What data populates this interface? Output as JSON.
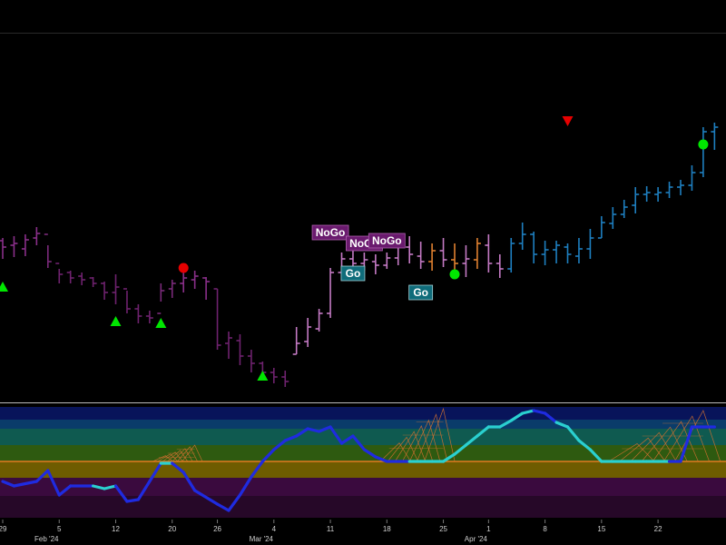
{
  "chart_data": {
    "type": "ohlc",
    "price_panel": {
      "x_dates": [
        "2024-01-29",
        "2024-01-30",
        "2024-01-31",
        "2024-02-01",
        "2024-02-02",
        "2024-02-05",
        "2024-02-06",
        "2024-02-07",
        "2024-02-08",
        "2024-02-09",
        "2024-02-12",
        "2024-02-13",
        "2024-02-14",
        "2024-02-15",
        "2024-02-16",
        "2024-02-20",
        "2024-02-21",
        "2024-02-22",
        "2024-02-23",
        "2024-02-26",
        "2024-02-27",
        "2024-02-28",
        "2024-02-29",
        "2024-03-01",
        "2024-03-04",
        "2024-03-05",
        "2024-03-06",
        "2024-03-07",
        "2024-03-08",
        "2024-03-11",
        "2024-03-12",
        "2024-03-13",
        "2024-03-14",
        "2024-03-15",
        "2024-03-18",
        "2024-03-19",
        "2024-03-20",
        "2024-03-21",
        "2024-03-22",
        "2024-03-25",
        "2024-03-26",
        "2024-03-27",
        "2024-03-28",
        "2024-04-01",
        "2024-04-02",
        "2024-04-03",
        "2024-04-04",
        "2024-04-05",
        "2024-04-08",
        "2024-04-09",
        "2024-04-10",
        "2024-04-11",
        "2024-04-12",
        "2024-04-15",
        "2024-04-16",
        "2024-04-17",
        "2024-04-18",
        "2024-04-19",
        "2024-04-22",
        "2024-04-23",
        "2024-04-24",
        "2024-04-25",
        "2024-04-26",
        "2024-04-29"
      ],
      "bars": [
        {
          "o": 265,
          "h": 262,
          "l": 285,
          "c": 272,
          "color": "#8a2f8a"
        },
        {
          "o": 270,
          "h": 260,
          "l": 283,
          "c": 268,
          "color": "#8a2f8a"
        },
        {
          "o": 274,
          "h": 258,
          "l": 282,
          "c": 264,
          "color": "#8a2f8a"
        },
        {
          "o": 262,
          "h": 250,
          "l": 270,
          "c": 257,
          "color": "#8a2f8a"
        },
        {
          "o": 258,
          "h": 270,
          "l": 295,
          "c": 288,
          "color": "#7a2a7a"
        },
        {
          "o": 290,
          "h": 296,
          "l": 312,
          "c": 302,
          "color": "#6e226e"
        },
        {
          "o": 300,
          "h": 298,
          "l": 312,
          "c": 306,
          "color": "#6e226e"
        },
        {
          "o": 304,
          "h": 300,
          "l": 314,
          "c": 308,
          "color": "#6e226e"
        },
        {
          "o": 306,
          "h": 305,
          "l": 316,
          "c": 312,
          "color": "#6e226e"
        },
        {
          "o": 312,
          "h": 310,
          "l": 330,
          "c": 322,
          "color": "#6e226e"
        },
        {
          "o": 322,
          "h": 302,
          "l": 335,
          "c": 316,
          "color": "#6e226e"
        },
        {
          "o": 318,
          "h": 320,
          "l": 345,
          "c": 340,
          "color": "#6e226e"
        },
        {
          "o": 340,
          "h": 335,
          "l": 356,
          "c": 348,
          "color": "#6e226e"
        },
        {
          "o": 348,
          "h": 342,
          "l": 356,
          "c": 350,
          "color": "#6e226e"
        },
        {
          "o": 345,
          "h": 312,
          "l": 332,
          "c": 320,
          "color": "#7a2a7a"
        },
        {
          "o": 318,
          "h": 308,
          "l": 328,
          "c": 312,
          "color": "#7a2a7a"
        },
        {
          "o": 312,
          "h": 300,
          "l": 322,
          "c": 306,
          "color": "#8a2f8a"
        },
        {
          "o": 308,
          "h": 298,
          "l": 318,
          "c": 304,
          "color": "#8a2f8a"
        },
        {
          "o": 306,
          "h": 305,
          "l": 330,
          "c": 310,
          "color": "#8a2f8a"
        },
        {
          "o": 318,
          "h": 318,
          "l": 385,
          "c": 380,
          "color": "#6e226e"
        },
        {
          "o": 378,
          "h": 365,
          "l": 395,
          "c": 372,
          "color": "#6e226e"
        },
        {
          "o": 375,
          "h": 368,
          "l": 402,
          "c": 392,
          "color": "#6e226e"
        },
        {
          "o": 392,
          "h": 385,
          "l": 410,
          "c": 400,
          "color": "#6e226e"
        },
        {
          "o": 400,
          "h": 398,
          "l": 418,
          "c": 410,
          "color": "#6e226e"
        },
        {
          "o": 410,
          "h": 405,
          "l": 422,
          "c": 415,
          "color": "#6e226e"
        },
        {
          "o": 415,
          "h": 408,
          "l": 426,
          "c": 420,
          "color": "#6e226e"
        },
        {
          "o": 390,
          "h": 360,
          "l": 390,
          "c": 378,
          "color": "#c47ac4"
        },
        {
          "o": 376,
          "h": 350,
          "l": 382,
          "c": 360,
          "color": "#c47ac4"
        },
        {
          "o": 362,
          "h": 340,
          "l": 365,
          "c": 345,
          "color": "#c47ac4"
        },
        {
          "o": 345,
          "h": 295,
          "l": 350,
          "c": 300,
          "color": "#c47ac4"
        },
        {
          "o": 300,
          "h": 278,
          "l": 308,
          "c": 285,
          "color": "#c47ac4"
        },
        {
          "o": 285,
          "h": 275,
          "l": 300,
          "c": 290,
          "color": "#c47ac4"
        },
        {
          "o": 290,
          "h": 278,
          "l": 298,
          "c": 286,
          "color": "#c47ac4"
        },
        {
          "o": 288,
          "h": 280,
          "l": 302,
          "c": 292,
          "color": "#c47ac4"
        },
        {
          "o": 292,
          "h": 278,
          "l": 296,
          "c": 284,
          "color": "#c47ac4"
        },
        {
          "o": 284,
          "h": 262,
          "l": 292,
          "c": 270,
          "color": "#c47ac4"
        },
        {
          "o": 272,
          "h": 260,
          "l": 290,
          "c": 280,
          "color": "#c47ac4"
        },
        {
          "o": 282,
          "h": 266,
          "l": 296,
          "c": 288,
          "color": "#c47ac4"
        },
        {
          "o": 288,
          "h": 268,
          "l": 298,
          "c": 276,
          "color": "#e08030"
        },
        {
          "o": 276,
          "h": 262,
          "l": 294,
          "c": 286,
          "color": "#c47ac4"
        },
        {
          "o": 286,
          "h": 268,
          "l": 300,
          "c": 290,
          "color": "#e08030"
        },
        {
          "o": 290,
          "h": 270,
          "l": 305,
          "c": 285,
          "color": "#c47ac4"
        },
        {
          "o": 286,
          "h": 262,
          "l": 296,
          "c": 268,
          "color": "#e08030"
        },
        {
          "o": 270,
          "h": 258,
          "l": 300,
          "c": 290,
          "color": "#c47ac4"
        },
        {
          "o": 290,
          "h": 280,
          "l": 306,
          "c": 296,
          "color": "#c47ac4"
        },
        {
          "o": 296,
          "h": 262,
          "l": 300,
          "c": 268,
          "color": "#1e7fc0"
        },
        {
          "o": 268,
          "h": 245,
          "l": 275,
          "c": 258,
          "color": "#1e7fc0"
        },
        {
          "o": 258,
          "h": 255,
          "l": 290,
          "c": 280,
          "color": "#1e7fc0"
        },
        {
          "o": 280,
          "h": 265,
          "l": 292,
          "c": 275,
          "color": "#1e7fc0"
        },
        {
          "o": 275,
          "h": 265,
          "l": 290,
          "c": 270,
          "color": "#1e7fc0"
        },
        {
          "o": 272,
          "h": 268,
          "l": 290,
          "c": 280,
          "color": "#1e7fc0"
        },
        {
          "o": 282,
          "h": 262,
          "l": 290,
          "c": 274,
          "color": "#1e7fc0"
        },
        {
          "o": 274,
          "h": 252,
          "l": 285,
          "c": 262,
          "color": "#1e7fc0"
        },
        {
          "o": 262,
          "h": 238,
          "l": 262,
          "c": 245,
          "color": "#1e7fc0"
        },
        {
          "o": 246,
          "h": 228,
          "l": 252,
          "c": 236,
          "color": "#1e7fc0"
        },
        {
          "o": 236,
          "h": 220,
          "l": 240,
          "c": 228,
          "color": "#1e7fc0"
        },
        {
          "o": 226,
          "h": 206,
          "l": 235,
          "c": 214,
          "color": "#1e7fc0"
        },
        {
          "o": 214,
          "h": 205,
          "l": 222,
          "c": 212,
          "color": "#1e7fc0"
        },
        {
          "o": 214,
          "h": 206,
          "l": 222,
          "c": 212,
          "color": "#1e7fc0"
        },
        {
          "o": 212,
          "h": 200,
          "l": 218,
          "c": 206,
          "color": "#1e7fc0"
        },
        {
          "o": 206,
          "h": 198,
          "l": 215,
          "c": 204,
          "color": "#1e7fc0"
        },
        {
          "o": 204,
          "h": 182,
          "l": 210,
          "c": 190,
          "color": "#1e7fc0"
        },
        {
          "o": 190,
          "h": 140,
          "l": 195,
          "c": 145,
          "color": "#1e7fc0"
        },
        {
          "o": 145,
          "h": 135,
          "l": 165,
          "c": 140,
          "color": "#1e7fc0"
        }
      ],
      "markers": [
        {
          "type": "green-triangle-up",
          "date": "2024-01-29",
          "value": 316
        },
        {
          "type": "green-triangle-up",
          "date": "2024-02-12",
          "value": 354
        },
        {
          "type": "green-triangle-up",
          "date": "2024-02-16",
          "value": 356
        },
        {
          "type": "red-circle",
          "date": "2024-02-21",
          "value": 295
        },
        {
          "type": "green-triangle-up",
          "date": "2024-03-01",
          "value": 414
        },
        {
          "type": "green-circle",
          "date": "2024-03-26",
          "value": 302
        },
        {
          "type": "red-triangle-down",
          "date": "2024-04-10",
          "value": 133
        },
        {
          "type": "green-circle",
          "date": "2024-04-26",
          "value": 159
        }
      ],
      "flags": [
        {
          "label": "NoGo",
          "kind": "nogo",
          "date": "2024-03-11",
          "value": 256
        },
        {
          "label": "NoGo",
          "kind": "nogo",
          "date": "2024-03-14",
          "value": 268
        },
        {
          "label": "NoGo",
          "kind": "nogo",
          "date": "2024-03-18",
          "value": 265
        },
        {
          "label": "Go",
          "kind": "go",
          "date": "2024-03-13",
          "value": 301
        },
        {
          "label": "Go",
          "kind": "go",
          "date": "2024-03-21",
          "value": 322
        }
      ]
    },
    "oscillator_panel": {
      "zero_value": 508,
      "line": [
        {
          "d": "2024-01-29",
          "v": 530,
          "c": "#1f2be0"
        },
        {
          "d": "2024-01-30",
          "v": 535,
          "c": "#1f2be0"
        },
        {
          "d": "2024-02-01",
          "v": 530,
          "c": "#1f2be0"
        },
        {
          "d": "2024-02-02",
          "v": 518,
          "c": "#1f2be0"
        },
        {
          "d": "2024-02-05",
          "v": 545,
          "c": "#1f2be0"
        },
        {
          "d": "2024-02-06",
          "v": 535,
          "c": "#1f2be0"
        },
        {
          "d": "2024-02-08",
          "v": 535,
          "c": "#1f2be0"
        },
        {
          "d": "2024-02-09",
          "v": 538,
          "c": "#2ad0d0"
        },
        {
          "d": "2024-02-12",
          "v": 535,
          "c": "#2ad0d0"
        },
        {
          "d": "2024-02-13",
          "v": 552,
          "c": "#1f2be0"
        },
        {
          "d": "2024-02-14",
          "v": 550,
          "c": "#1f2be0"
        },
        {
          "d": "2024-02-15",
          "v": 530,
          "c": "#1f2be0"
        },
        {
          "d": "2024-02-16",
          "v": 510,
          "c": "#1f2be0"
        },
        {
          "d": "2024-02-20",
          "v": 510,
          "c": "#2ad0d0"
        },
        {
          "d": "2024-02-21",
          "v": 520,
          "c": "#1f2be0"
        },
        {
          "d": "2024-02-22",
          "v": 540,
          "c": "#1f2be0"
        },
        {
          "d": "2024-02-26",
          "v": 555,
          "c": "#1f2be0"
        },
        {
          "d": "2024-02-27",
          "v": 562,
          "c": "#1f2be0"
        },
        {
          "d": "2024-02-28",
          "v": 545,
          "c": "#1f2be0"
        },
        {
          "d": "2024-02-29",
          "v": 525,
          "c": "#1f2be0"
        },
        {
          "d": "2024-03-01",
          "v": 508,
          "c": "#1f2be0"
        },
        {
          "d": "2024-03-04",
          "v": 495,
          "c": "#1f2be0"
        },
        {
          "d": "2024-03-05",
          "v": 485,
          "c": "#1f2be0"
        },
        {
          "d": "2024-03-06",
          "v": 480,
          "c": "#1f2be0"
        },
        {
          "d": "2024-03-07",
          "v": 472,
          "c": "#1f2be0"
        },
        {
          "d": "2024-03-08",
          "v": 475,
          "c": "#1f2be0"
        },
        {
          "d": "2024-03-11",
          "v": 470,
          "c": "#1f2be0"
        },
        {
          "d": "2024-03-12",
          "v": 488,
          "c": "#1f2be0"
        },
        {
          "d": "2024-03-13",
          "v": 480,
          "c": "#1f2be0"
        },
        {
          "d": "2024-03-14",
          "v": 495,
          "c": "#1f2be0"
        },
        {
          "d": "2024-03-15",
          "v": 503,
          "c": "#1f2be0"
        },
        {
          "d": "2024-03-18",
          "v": 508,
          "c": "#1f2be0"
        },
        {
          "d": "2024-03-19",
          "v": 508,
          "c": "#1f2be0"
        },
        {
          "d": "2024-03-20",
          "v": 508,
          "c": "#1f2be0"
        },
        {
          "d": "2024-03-21",
          "v": 508,
          "c": "#2ad0d0"
        },
        {
          "d": "2024-03-22",
          "v": 508,
          "c": "#2ad0d0"
        },
        {
          "d": "2024-03-25",
          "v": 508,
          "c": "#2ad0d0"
        },
        {
          "d": "2024-03-26",
          "v": 500,
          "c": "#2ad0d0"
        },
        {
          "d": "2024-03-27",
          "v": 490,
          "c": "#2ad0d0"
        },
        {
          "d": "2024-03-28",
          "v": 480,
          "c": "#2ad0d0"
        },
        {
          "d": "2024-04-01",
          "v": 470,
          "c": "#2ad0d0"
        },
        {
          "d": "2024-04-02",
          "v": 470,
          "c": "#2ad0d0"
        },
        {
          "d": "2024-04-03",
          "v": 463,
          "c": "#2ad0d0"
        },
        {
          "d": "2024-04-04",
          "v": 455,
          "c": "#2ad0d0"
        },
        {
          "d": "2024-04-05",
          "v": 452,
          "c": "#2ad0d0"
        },
        {
          "d": "2024-04-08",
          "v": 455,
          "c": "#1f2be0"
        },
        {
          "d": "2024-04-09",
          "v": 465,
          "c": "#1f2be0"
        },
        {
          "d": "2024-04-10",
          "v": 470,
          "c": "#2ad0d0"
        },
        {
          "d": "2024-04-11",
          "v": 485,
          "c": "#2ad0d0"
        },
        {
          "d": "2024-04-12",
          "v": 495,
          "c": "#2ad0d0"
        },
        {
          "d": "2024-04-15",
          "v": 508,
          "c": "#2ad0d0"
        },
        {
          "d": "2024-04-16",
          "v": 508,
          "c": "#2ad0d0"
        },
        {
          "d": "2024-04-17",
          "v": 508,
          "c": "#2ad0d0"
        },
        {
          "d": "2024-04-18",
          "v": 508,
          "c": "#2ad0d0"
        },
        {
          "d": "2024-04-19",
          "v": 508,
          "c": "#2ad0d0"
        },
        {
          "d": "2024-04-22",
          "v": 508,
          "c": "#2ad0d0"
        },
        {
          "d": "2024-04-23",
          "v": 508,
          "c": "#2ad0d0"
        },
        {
          "d": "2024-04-24",
          "v": 508,
          "c": "#1f2be0"
        },
        {
          "d": "2024-04-25",
          "v": 470,
          "c": "#1f2be0"
        },
        {
          "d": "2024-04-26",
          "v": 470,
          "c": "#1f2be0"
        },
        {
          "d": "2024-04-29",
          "v": 470,
          "c": "#1f2be0"
        }
      ],
      "wave_clusters": [
        {
          "start": "2024-02-15",
          "end": "2024-02-22",
          "peak": 490
        },
        {
          "start": "2024-03-15",
          "end": "2024-03-25",
          "peak": 450
        },
        {
          "start": "2024-04-15",
          "end": "2024-04-26",
          "peak": 452
        }
      ],
      "bands": [
        {
          "color": "#08145a"
        },
        {
          "color": "#0a3c6a"
        },
        {
          "color": "#0f5a50"
        },
        {
          "color": "#2e5a10"
        },
        {
          "color": "#6e5c00"
        },
        {
          "color": "#3a0a3e"
        },
        {
          "color": "#260828"
        }
      ]
    },
    "x_ticks": [
      {
        "label": "29",
        "date": "2024-01-29",
        "sub": ""
      },
      {
        "label": "5",
        "date": "2024-02-05",
        "sub": "Feb '24"
      },
      {
        "label": "12",
        "date": "2024-02-12",
        "sub": ""
      },
      {
        "label": "20",
        "date": "2024-02-20",
        "sub": ""
      },
      {
        "label": "26",
        "date": "2024-02-26",
        "sub": ""
      },
      {
        "label": "4",
        "date": "2024-03-04",
        "sub": "Mar '24"
      },
      {
        "label": "11",
        "date": "2024-03-11",
        "sub": ""
      },
      {
        "label": "18",
        "date": "2024-03-18",
        "sub": ""
      },
      {
        "label": "25",
        "date": "2024-03-25",
        "sub": ""
      },
      {
        "label": "1",
        "date": "2024-04-01",
        "sub": "Apr '24"
      },
      {
        "label": "8",
        "date": "2024-04-08",
        "sub": ""
      },
      {
        "label": "15",
        "date": "2024-04-15",
        "sub": ""
      },
      {
        "label": "22",
        "date": "2024-04-22",
        "sub": ""
      }
    ],
    "colors": {
      "background": "#000000",
      "zero_line": "#e07a20",
      "wave": "#d07030",
      "nogo_flag": "#6a1a6e",
      "go_flag": "#0f6c7a",
      "green_marker": "#00e600",
      "red_marker": "#e60000",
      "separator": "#bbbbbb"
    }
  }
}
